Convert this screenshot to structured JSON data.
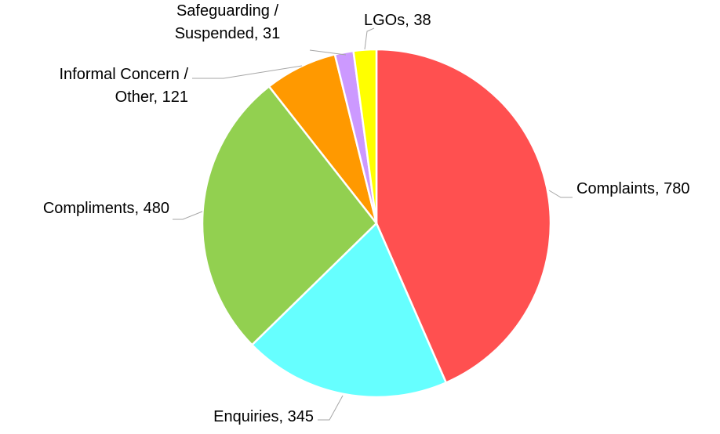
{
  "chart_data": {
    "type": "pie",
    "categories": [
      "Complaints",
      "Enquiries",
      "Compliments",
      "Informal Concern / Other",
      "Safeguarding / Suspended",
      "LGOs"
    ],
    "values": [
      780,
      345,
      480,
      121,
      31,
      38
    ],
    "value_labels": [
      "Complaints, 780",
      "Enquiries, 345",
      "Compliments, 480",
      "Informal Concern / Other, 121",
      "Safeguarding / Suspended, 31",
      "LGOs, 38"
    ],
    "colors": [
      "#ff5050",
      "#66ffff",
      "#92d050",
      "#ff9900",
      "#cc99ff",
      "#ffff00"
    ]
  }
}
